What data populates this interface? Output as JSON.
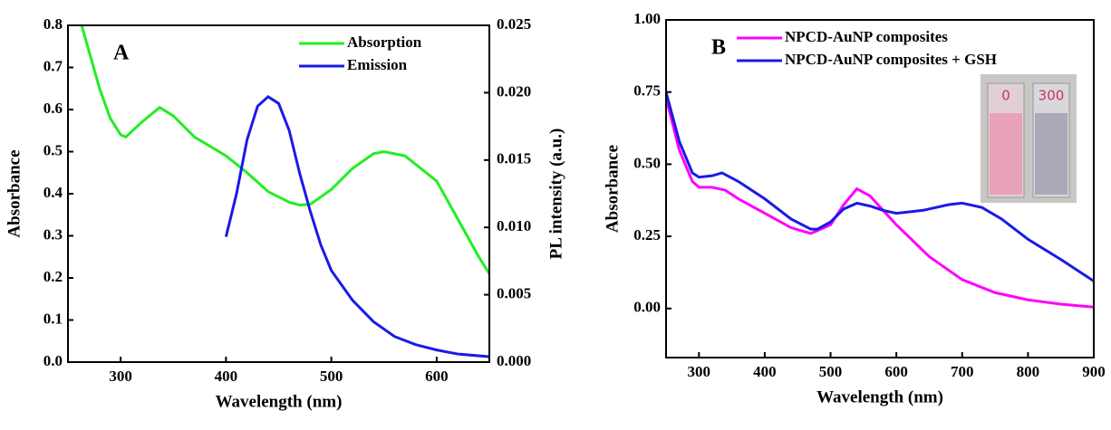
{
  "chart_data": [
    {
      "type": "line",
      "annotation": "A",
      "x_label": "Wavelength (nm)",
      "y_label": "Absorbance",
      "y2_label": "PL intensity (a.u.)",
      "xlim": [
        250,
        650
      ],
      "xticks": [
        300,
        400,
        500,
        600
      ],
      "ylim": [
        0,
        0.8
      ],
      "yticks": [
        {
          "value": 0,
          "label": "0.0"
        },
        0.1,
        0.2,
        0.3,
        0.4,
        0.5,
        0.6,
        0.7,
        0.8
      ],
      "y2lim": [
        0,
        0.025
      ],
      "y2ticks": [
        {
          "value": 0,
          "label": "0.000"
        },
        {
          "value": 0.005,
          "label": "0.005"
        },
        {
          "value": 0.01,
          "label": "0.010"
        },
        {
          "value": 0.015,
          "label": "0.015"
        },
        {
          "value": 0.02,
          "label": "0.020"
        },
        {
          "value": 0.025,
          "label": "0.025"
        }
      ],
      "legend": "upper right",
      "series": [
        {
          "name": "Absorption",
          "color": "#22ee22",
          "x": [
            263,
            280,
            290,
            300,
            305,
            320,
            337,
            350,
            370,
            400,
            420,
            440,
            460,
            470,
            480,
            500,
            520,
            540,
            550,
            570,
            600,
            620,
            640,
            650
          ],
          "values": [
            0.8,
            0.65,
            0.58,
            0.54,
            0.535,
            0.57,
            0.605,
            0.585,
            0.535,
            0.49,
            0.45,
            0.405,
            0.38,
            0.373,
            0.375,
            0.41,
            0.46,
            0.495,
            0.5,
            0.49,
            0.43,
            0.34,
            0.25,
            0.21
          ]
        },
        {
          "name": "Emission",
          "color": "#1a1ae6",
          "axis": "y2",
          "x": [
            400,
            410,
            420,
            430,
            440,
            450,
            460,
            470,
            480,
            490,
            500,
            520,
            540,
            560,
            580,
            600,
            620,
            650
          ],
          "values": [
            0.0093,
            0.0125,
            0.0165,
            0.019,
            0.0197,
            0.0192,
            0.0172,
            0.014,
            0.0112,
            0.0087,
            0.0068,
            0.0046,
            0.003,
            0.0019,
            0.0013,
            0.0009,
            0.0006,
            0.0004
          ]
        }
      ]
    },
    {
      "type": "line",
      "annotation": "B",
      "x_label": "Wavelength (nm)",
      "y_label": "Absorbance",
      "xlim": [
        250,
        900
      ],
      "xticks": [
        300,
        400,
        500,
        600,
        700,
        800,
        900
      ],
      "ylim": [
        -0.17,
        1.0
      ],
      "yticks": [
        {
          "value": 0,
          "label": "0.00"
        },
        {
          "value": 0.25,
          "label": "0.25"
        },
        {
          "value": 0.5,
          "label": "0.50"
        },
        {
          "value": 0.75,
          "label": "0.75"
        },
        {
          "value": 1.0,
          "label": "1.00"
        }
      ],
      "legend": "upper left",
      "inset_labels": [
        "0",
        "300"
      ],
      "series": [
        {
          "name": "NPCD-AuNP composites",
          "color": "#ff00ff",
          "x": [
            250,
            270,
            290,
            300,
            320,
            340,
            360,
            400,
            440,
            470,
            500,
            520,
            540,
            560,
            600,
            650,
            700,
            750,
            800,
            850,
            900
          ],
          "values": [
            0.73,
            0.55,
            0.44,
            0.42,
            0.42,
            0.41,
            0.38,
            0.33,
            0.28,
            0.26,
            0.29,
            0.36,
            0.415,
            0.39,
            0.29,
            0.18,
            0.1,
            0.055,
            0.03,
            0.015,
            0.005
          ]
        },
        {
          "name": "NPCD-AuNP composites + GSH",
          "color": "#1a1ae6",
          "x": [
            250,
            270,
            290,
            300,
            320,
            335,
            360,
            400,
            440,
            470,
            480,
            500,
            520,
            540,
            560,
            580,
            600,
            640,
            680,
            700,
            730,
            760,
            800,
            850,
            900
          ],
          "values": [
            0.75,
            0.58,
            0.47,
            0.455,
            0.46,
            0.47,
            0.44,
            0.38,
            0.31,
            0.275,
            0.275,
            0.3,
            0.345,
            0.365,
            0.355,
            0.34,
            0.33,
            0.34,
            0.36,
            0.365,
            0.35,
            0.31,
            0.24,
            0.17,
            0.095
          ]
        }
      ]
    }
  ]
}
